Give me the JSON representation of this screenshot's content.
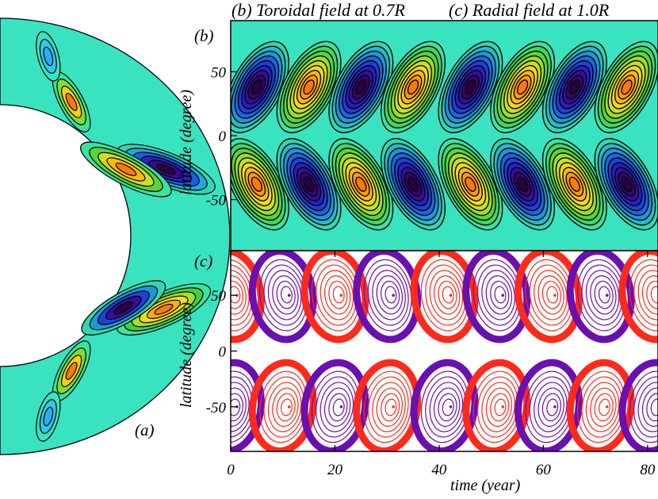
{
  "title_b": "(b) Toroidal field at 0.7R",
  "title_c": "(c) Radial field at 1.0R",
  "panel_a_label": "(a)",
  "panel_b_label": "(b)",
  "panel_c_label": "(c)",
  "ylabel_b": "latitude (degree)",
  "ylabel_c": "latitude (degree)",
  "xlabel": "time (year)",
  "colors": {
    "background_teal": "#3ae3c0",
    "strong_negative": "#2a0040",
    "strong_positive": "#ff7a00",
    "radial_positive": "#ff2a1a",
    "radial_negative": "#6a0fb0"
  },
  "chart_data": [
    {
      "type": "heatmap",
      "name": "(b) Toroidal field at 0.7R",
      "xlim": [
        0,
        82
      ],
      "ylim": [
        -90,
        90
      ],
      "x_ticks": [
        0,
        20,
        40,
        60,
        80
      ],
      "y_ticks": [
        50,
        0,
        -50
      ],
      "y_tick_labels": [
        "50",
        "0",
        "-50"
      ],
      "north_cell_centers_year": [
        5,
        15,
        25,
        35,
        46,
        56,
        66,
        76
      ],
      "north_cell_signs": [
        "negative",
        "positive",
        "negative",
        "positive",
        "negative",
        "positive",
        "negative",
        "positive"
      ],
      "south_cell_centers_year": [
        5,
        15,
        25,
        35,
        46,
        56,
        66,
        76
      ],
      "south_cell_signs": [
        "positive",
        "negative",
        "positive",
        "negative",
        "positive",
        "negative",
        "positive",
        "negative"
      ],
      "cell_center_latitude": 38
    },
    {
      "type": "heatmap",
      "name": "(c) Radial field at 1.0R",
      "xlim": [
        0,
        82
      ],
      "ylim": [
        -90,
        90
      ],
      "x_ticks": [
        0,
        20,
        40,
        60,
        80
      ],
      "x_tick_labels": [
        "0",
        "20",
        "40",
        "60",
        "80"
      ],
      "y_ticks": [
        50,
        0,
        -50
      ],
      "y_tick_labels": [
        "50",
        "0",
        "-50"
      ],
      "north_cell_centers_year": [
        0,
        10,
        20,
        30,
        41,
        51,
        61,
        71,
        81
      ],
      "north_cell_signs": [
        "positive",
        "negative",
        "positive",
        "negative",
        "positive",
        "negative",
        "positive",
        "negative",
        "positive"
      ],
      "south_cell_centers_year": [
        0,
        10,
        20,
        30,
        41,
        51,
        61,
        71,
        81
      ],
      "south_cell_signs": [
        "negative",
        "positive",
        "negative",
        "positive",
        "negative",
        "positive",
        "negative",
        "positive",
        "negative"
      ],
      "cell_center_latitude": 50
    }
  ]
}
